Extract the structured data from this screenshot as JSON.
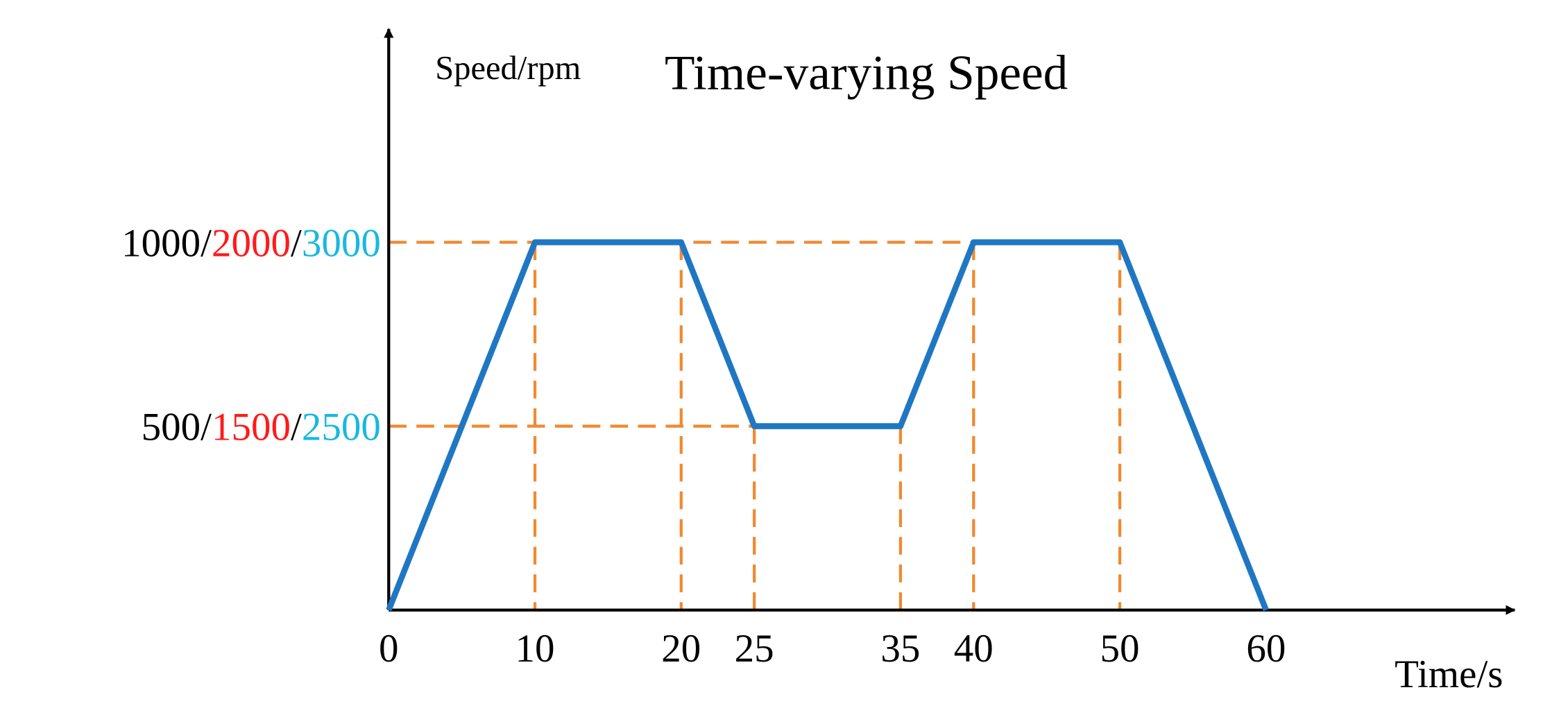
{
  "chart_data": {
    "type": "line",
    "title": "Time-varying Speed",
    "y_label": "Speed/rpm",
    "x_label": "Time/s",
    "x": [
      0,
      10,
      20,
      25,
      35,
      40,
      50,
      60
    ],
    "series": [
      {
        "color": "#1f77c4",
        "values": [
          0,
          1000,
          1000,
          500,
          500,
          1000,
          1000,
          0
        ]
      }
    ],
    "xlim": [
      0,
      77
    ],
    "ylim": [
      0,
      1580
    ],
    "xticks": [
      0,
      10,
      20,
      25,
      35,
      40,
      50,
      60
    ],
    "yticks": [
      {
        "value": 500,
        "label": "500/1500/2500"
      },
      {
        "value": 1000,
        "label": "1000/2000/3000"
      }
    ],
    "ytick_label_colors": [
      "#000000",
      "#ff1a1a",
      "#19b8e0"
    ],
    "guide_color": "#f08a30"
  }
}
